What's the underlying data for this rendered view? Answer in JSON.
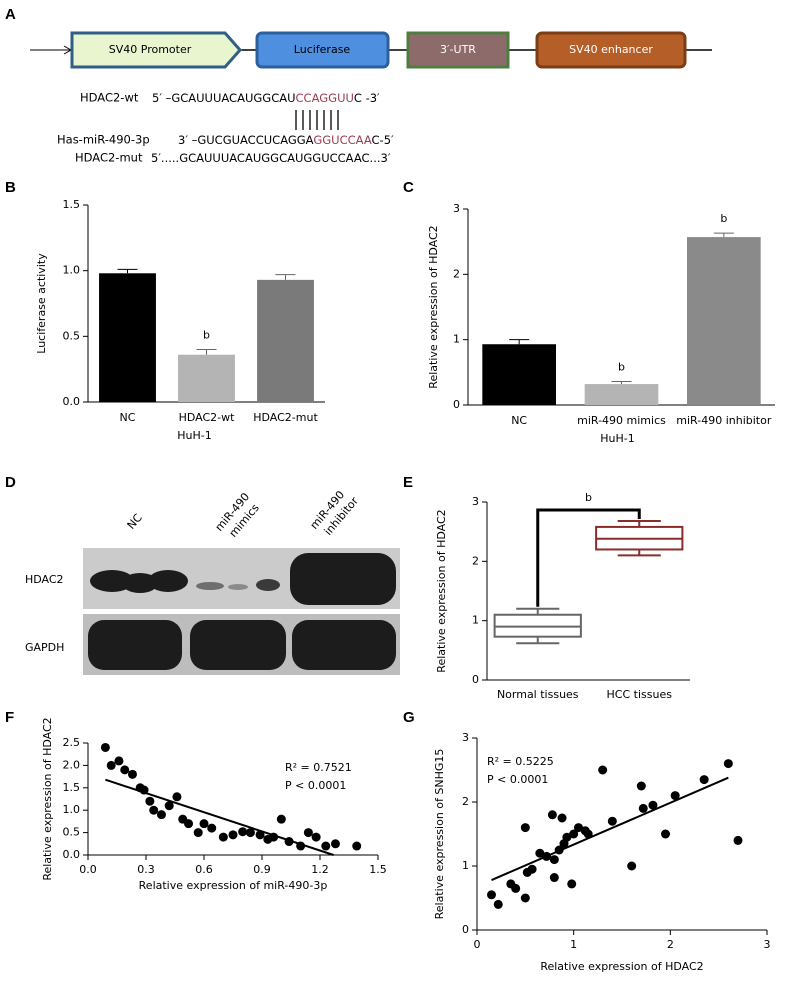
{
  "diagram": {
    "label": "A",
    "elements": [
      "SV40 Promoter",
      "Luciferase",
      "3′-UTR",
      "SV40 enhancer"
    ],
    "sequences": [
      {
        "name": "HDAC2-wt",
        "parts": [
          "5′ –GCAUUUACAUGGCAU",
          "CCAGGUU",
          "C -3′"
        ]
      },
      {
        "name": "Has-miR-490-3p",
        "parts": [
          "3′ –GUCGUACCUCAGGA",
          "GGUCCAA",
          "C-5′"
        ]
      },
      {
        "name": "HDAC2-mut",
        "parts": [
          "5′.....GCAUUUACAUGGCAUGGUCCAAC...3′"
        ]
      }
    ]
  },
  "blot": {
    "label": "D",
    "lanes": [
      [
        "NC"
      ],
      [
        "miR-490",
        "mimics"
      ],
      [
        "miR-490",
        "inhibitor"
      ]
    ],
    "rows": [
      "HDAC2",
      "GAPDH"
    ]
  },
  "chart_data": [
    {
      "type": "bar",
      "label": "B",
      "ylabel": "Luciferase activity",
      "xlabel": "HuH-1",
      "categories": [
        "NC",
        "HDAC2-wt",
        "HDAC2-mut"
      ],
      "values": [
        0.98,
        0.36,
        0.93
      ],
      "errors": [
        0.03,
        0.04,
        0.04
      ],
      "colors": [
        "#000000",
        "#b4b4b4",
        "#7a7a7a"
      ],
      "ylim": [
        0,
        1.5
      ],
      "yticks": [
        {
          "value": 0,
          "label": "0.0"
        },
        0.5,
        {
          "value": 1,
          "label": "1.0"
        },
        1.5
      ],
      "annotations": [
        {
          "text": "b",
          "category": "HDAC2-wt"
        }
      ]
    },
    {
      "type": "bar",
      "label": "C",
      "ylabel": "Relative expression of HDAC2",
      "xlabel": "HuH-1",
      "categories": [
        "NC",
        "miR-490 mimics",
        "miR-490 inhibitor"
      ],
      "values": [
        0.93,
        0.32,
        2.57
      ],
      "errors": [
        0.07,
        0.04,
        0.06
      ],
      "colors": [
        "#000000",
        "#b4b4b4",
        "#8a8a8a"
      ],
      "ylim": [
        0,
        3
      ],
      "yticks": [
        0,
        1,
        2,
        3
      ],
      "annotations": [
        {
          "text": "b",
          "category": "miR-490 mimics"
        },
        {
          "text": "b",
          "category": "miR-490 inhibitor"
        }
      ]
    },
    {
      "type": "box",
      "label": "E",
      "ylabel": "Relative expression of HDAC2",
      "categories": [
        "Normal tissues",
        "HCC tissues"
      ],
      "boxes": [
        {
          "whislo": 0.62,
          "q1": 0.73,
          "med": 0.9,
          "q3": 1.1,
          "whishi": 1.2,
          "color": "#666666"
        },
        {
          "whislo": 2.1,
          "q1": 2.2,
          "med": 2.38,
          "q3": 2.58,
          "whishi": 2.68,
          "color": "#8b2b2b"
        }
      ],
      "ylim": [
        0,
        3
      ],
      "yticks": [
        0,
        1,
        2,
        3
      ],
      "bracket": "b"
    },
    {
      "type": "scatter",
      "label": "F",
      "xlabel": "Relative expression of miR-490-3p",
      "ylabel": "Relative expression of HDAC2",
      "x": [
        0.09,
        0.12,
        0.16,
        0.19,
        0.23,
        0.27,
        0.29,
        0.32,
        0.34,
        0.38,
        0.42,
        0.46,
        0.49,
        0.52,
        0.57,
        0.6,
        0.64,
        0.7,
        0.75,
        0.8,
        0.84,
        0.89,
        0.93,
        0.96,
        1.0,
        1.04,
        1.1,
        1.14,
        1.18,
        1.23,
        1.28,
        1.39
      ],
      "y": [
        2.4,
        2.0,
        2.1,
        1.9,
        1.8,
        1.5,
        1.45,
        1.2,
        1.0,
        0.9,
        1.1,
        1.3,
        0.8,
        0.7,
        0.5,
        0.7,
        0.6,
        0.4,
        0.45,
        0.52,
        0.5,
        0.45,
        0.35,
        0.4,
        0.8,
        0.3,
        0.2,
        0.5,
        0.4,
        0.2,
        0.25,
        0.2
      ],
      "fit": {
        "x": [
          0.09,
          1.27
        ],
        "y": [
          1.68,
          0
        ]
      },
      "xlim": [
        0,
        1.5
      ],
      "xticks": [
        {
          "value": 0,
          "label": "0.0"
        },
        0.3,
        0.6,
        0.9,
        1.2,
        1.5
      ],
      "ylim": [
        0,
        2.5
      ],
      "yticks": [
        {
          "value": 0,
          "label": "0.0"
        },
        0.5,
        {
          "value": 1,
          "label": "1.0"
        },
        1.5,
        {
          "value": 2,
          "label": "2.0"
        },
        2.5
      ],
      "annotations": [
        "R² = 0.7521",
        "P < 0.0001"
      ]
    },
    {
      "type": "scatter",
      "label": "G",
      "xlabel": "Relative expression of HDAC2",
      "ylabel": "Relative expression of SNHG15",
      "x": [
        0.15,
        0.22,
        0.35,
        0.4,
        0.5,
        0.5,
        0.52,
        0.57,
        0.65,
        0.72,
        0.78,
        0.8,
        0.8,
        0.85,
        0.88,
        0.9,
        0.93,
        0.98,
        1.0,
        1.05,
        1.12,
        1.15,
        1.3,
        1.4,
        1.6,
        1.7,
        1.72,
        1.82,
        1.95,
        2.05,
        2.35,
        2.6,
        2.7
      ],
      "y": [
        0.55,
        0.4,
        0.72,
        0.65,
        1.6,
        0.5,
        0.9,
        0.95,
        1.2,
        1.15,
        1.8,
        1.1,
        0.82,
        1.25,
        1.75,
        1.35,
        1.45,
        0.72,
        1.5,
        1.6,
        1.55,
        1.5,
        2.5,
        1.7,
        1.0,
        2.25,
        1.9,
        1.95,
        1.5,
        2.1,
        2.35,
        2.6,
        1.4
      ],
      "fit": {
        "x": [
          0.15,
          2.6
        ],
        "y": [
          0.78,
          2.38
        ]
      },
      "xlim": [
        0,
        3
      ],
      "xticks": [
        0,
        1,
        2,
        3
      ],
      "ylim": [
        0,
        3
      ],
      "yticks": [
        0,
        1,
        2,
        3
      ],
      "annotations": [
        "R² = 0.5225",
        "P < 0.0001"
      ]
    }
  ]
}
